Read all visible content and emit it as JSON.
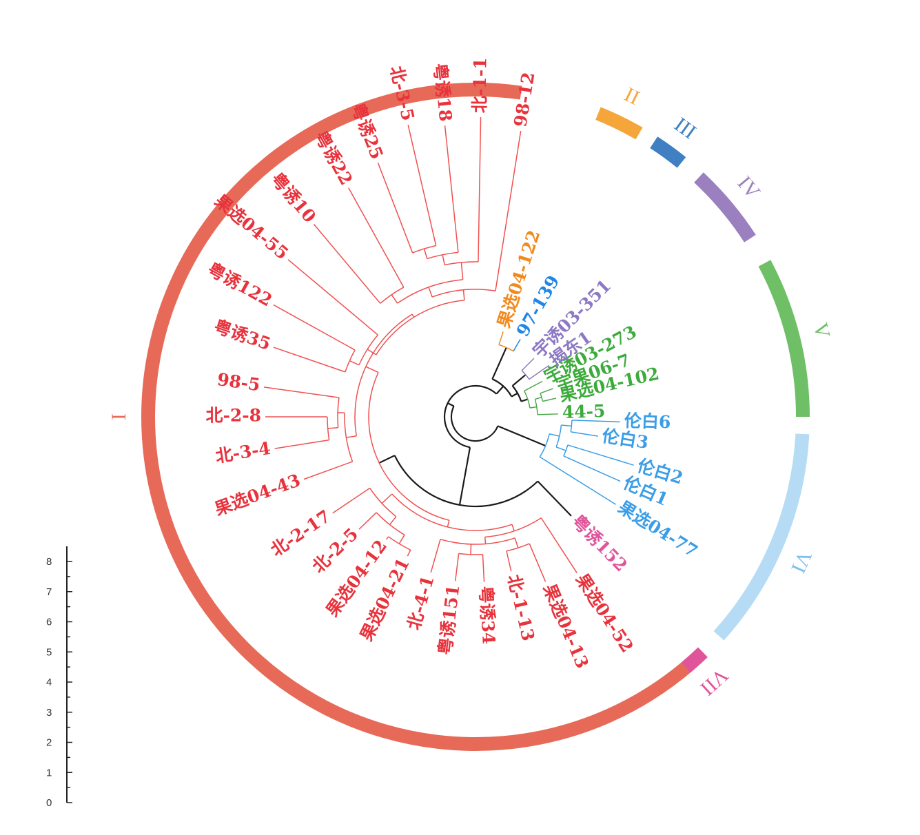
{
  "title": "",
  "groups": [
    {
      "id": "I",
      "label": "I",
      "color": "#e76a58"
    },
    {
      "id": "II",
      "label": "II",
      "color": "#f4a63a"
    },
    {
      "id": "III",
      "label": "III",
      "color": "#3f7fc2"
    },
    {
      "id": "IV",
      "label": "IV",
      "color": "#9b80bf"
    },
    {
      "id": "V",
      "label": "V",
      "color": "#6fbf66"
    },
    {
      "id": "VI",
      "label": "VI",
      "color": "#b5dcf4"
    },
    {
      "id": "VII",
      "label": "VII",
      "color": "#e0559a"
    }
  ],
  "label_colors": {
    "I": "#e8323c",
    "II": "#f08a1e",
    "III": "#1f86e6",
    "IV": "#8c78c4",
    "V": "#3cab3c",
    "VI": "#3a9de6",
    "VII": "#e0559a"
  },
  "branch_colors": {
    "root": "#1a1a1a",
    "I": "#f05050",
    "II": "#f08a1e",
    "III": "#1f86e6",
    "IV": "#8c78c4",
    "V": "#4aa84a",
    "VI": "#3a9de6",
    "VII": "#e876b0"
  },
  "leaves": [
    {
      "label": "98-12",
      "group": "I"
    },
    {
      "label": "北-1-1",
      "group": "I"
    },
    {
      "label": "粤诱18",
      "group": "I"
    },
    {
      "label": "北-3-5",
      "group": "I"
    },
    {
      "label": "粤诱25",
      "group": "I"
    },
    {
      "label": "粤诱22",
      "group": "I"
    },
    {
      "label": "粤诱10",
      "group": "I"
    },
    {
      "label": "果选04-55",
      "group": "I"
    },
    {
      "label": "粤诱122",
      "group": "I"
    },
    {
      "label": "粤诱35",
      "group": "I"
    },
    {
      "label": "98-5",
      "group": "I"
    },
    {
      "label": "北-2-8",
      "group": "I"
    },
    {
      "label": "北-3-4",
      "group": "I"
    },
    {
      "label": "果选04-43",
      "group": "I"
    },
    {
      "label": "北-2-17",
      "group": "I"
    },
    {
      "label": "北-2-5",
      "group": "I"
    },
    {
      "label": "果选04-12",
      "group": "I"
    },
    {
      "label": "果选04-21",
      "group": "I"
    },
    {
      "label": "北-4-1",
      "group": "I"
    },
    {
      "label": "粤诱151",
      "group": "I"
    },
    {
      "label": "粤诱34",
      "group": "I"
    },
    {
      "label": "北-1-13",
      "group": "I"
    },
    {
      "label": "果选04-13",
      "group": "I"
    },
    {
      "label": "果选04-52",
      "group": "I"
    },
    {
      "label": "粤诱152",
      "group": "VII"
    },
    {
      "label": "果选04-77",
      "group": "VI"
    },
    {
      "label": "伦白1",
      "group": "VI"
    },
    {
      "label": "伦白2",
      "group": "VI"
    },
    {
      "label": "伦白3",
      "group": "VI"
    },
    {
      "label": "伦白6",
      "group": "VI"
    },
    {
      "label": "44-5",
      "group": "V"
    },
    {
      "label": "果选04-102",
      "group": "V"
    },
    {
      "label": "宇果06-7",
      "group": "V"
    },
    {
      "label": "宇诱03-273",
      "group": "V"
    },
    {
      "label": "揭东1",
      "group": "IV"
    },
    {
      "label": "宇诱03-351",
      "group": "IV"
    },
    {
      "label": "97-139",
      "group": "III"
    },
    {
      "label": "果选04-122",
      "group": "II"
    }
  ],
  "scale": {
    "min": 0,
    "max": 8,
    "ticks": [
      "0",
      "1",
      "2",
      "3",
      "4",
      "5",
      "6",
      "7",
      "8"
    ]
  }
}
